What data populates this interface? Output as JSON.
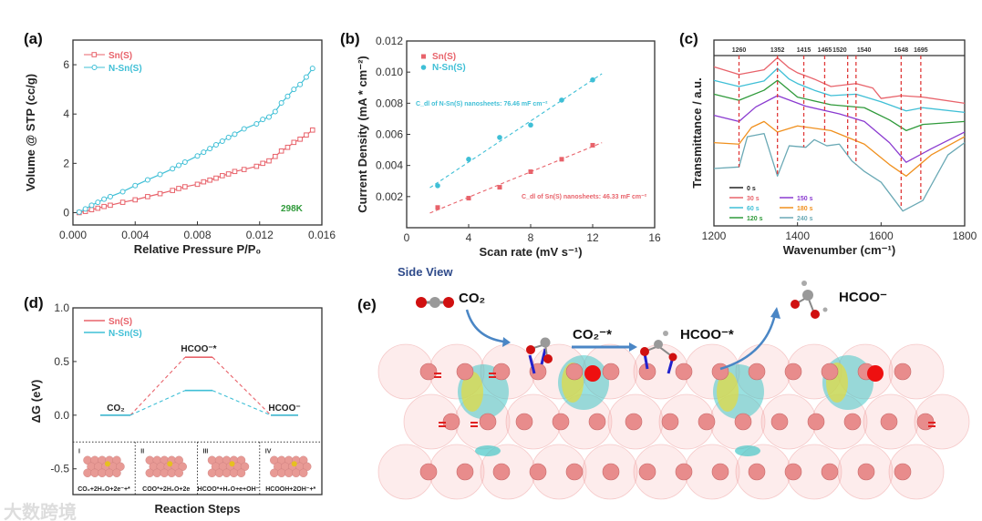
{
  "colors": {
    "sn": "#e8636b",
    "nsn": "#3fbfd6",
    "green": "#2f9a3a",
    "purple": "#8a3ad0",
    "orange": "#f0901e",
    "teal": "#6aa9b5",
    "black": "#222222",
    "side_view": "#2e4a8a"
  },
  "panels": {
    "a": "(a)",
    "b": "(b)",
    "c": "(c)",
    "d": "(d)",
    "e": "(e)"
  },
  "watermark": "大数跨境",
  "chart_data": [
    {
      "id": "a",
      "type": "line",
      "xlabel": "Relative Pressure  P/P₀",
      "ylabel": "Volume @ STP (cc/g)",
      "xlim": [
        0,
        0.016
      ],
      "ylim": [
        -0.5,
        7
      ],
      "xticks": [
        "0.000",
        "0.004",
        "0.008",
        "0.012",
        "0.016"
      ],
      "xtick_values": [
        0,
        0.004,
        0.008,
        0.012,
        0.016
      ],
      "yticks": [
        "0",
        "2",
        "4",
        "6"
      ],
      "ytick_values": [
        0,
        2,
        4,
        6
      ],
      "annotation": "298K",
      "legend_position": "top-left",
      "x": [
        0.0004,
        0.0008,
        0.0012,
        0.0016,
        0.002,
        0.0024,
        0.0032,
        0.004,
        0.0048,
        0.0056,
        0.0064,
        0.0068,
        0.0072,
        0.008,
        0.0084,
        0.0088,
        0.0092,
        0.0096,
        0.01,
        0.0104,
        0.011,
        0.0118,
        0.0122,
        0.0126,
        0.013,
        0.0134,
        0.0138,
        0.0142,
        0.0146,
        0.015,
        0.0154
      ],
      "series": [
        {
          "name": "Sn(S)",
          "marker": "square",
          "values": [
            0,
            0.05,
            0.12,
            0.18,
            0.25,
            0.3,
            0.42,
            0.52,
            0.65,
            0.77,
            0.9,
            0.98,
            1.05,
            1.15,
            1.25,
            1.32,
            1.4,
            1.5,
            1.57,
            1.67,
            1.75,
            1.88,
            2.0,
            2.1,
            2.28,
            2.5,
            2.65,
            2.85,
            2.98,
            3.15,
            3.35
          ]
        },
        {
          "name": "N-Sn(S)",
          "marker": "circle",
          "values": [
            0.02,
            0.15,
            0.3,
            0.42,
            0.55,
            0.65,
            0.85,
            1.1,
            1.33,
            1.55,
            1.78,
            1.92,
            2.05,
            2.3,
            2.45,
            2.6,
            2.75,
            2.9,
            3.05,
            3.18,
            3.4,
            3.6,
            3.78,
            3.88,
            4.1,
            4.45,
            4.72,
            5.0,
            5.2,
            5.5,
            5.85
          ]
        }
      ]
    },
    {
      "id": "b",
      "type": "scatter",
      "xlabel": "Scan rate (mV s⁻¹)",
      "ylabel": "Current Density (mA * cm⁻²)",
      "xlim": [
        0,
        16
      ],
      "ylim": [
        0,
        0.012
      ],
      "xticks": [
        "0",
        "4",
        "8",
        "12",
        "16"
      ],
      "xtick_values": [
        0,
        4,
        8,
        12,
        16
      ],
      "yticks": [
        "0.002",
        "0.004",
        "0.006",
        "0.008",
        "0.010",
        "0.012"
      ],
      "ytick_values": [
        0.002,
        0.004,
        0.006,
        0.008,
        0.01,
        0.012
      ],
      "legend_position": "top-left",
      "x": [
        2,
        4,
        6,
        8,
        10,
        12
      ],
      "series": [
        {
          "name": "Sn(S)",
          "values": [
            0.0013,
            0.0019,
            0.0026,
            0.0036,
            0.0044,
            0.0053
          ],
          "fit_annotation": "C_dl of Sn(S) nanosheets: 46.33 mF cm⁻²"
        },
        {
          "name": "N-Sn(S)",
          "values": [
            0.0027,
            0.0044,
            0.0058,
            0.0066,
            0.0082,
            0.0095
          ],
          "fit_annotation": "C_dl of N-Sn(S) nanosheets: 76.46 mF cm⁻²"
        }
      ]
    },
    {
      "id": "c",
      "type": "line",
      "xlabel": "Wavenumber (cm⁻¹)",
      "ylabel": "Transmittance / a.u.",
      "xlim": [
        1200,
        1800
      ],
      "ylim": [
        0,
        100
      ],
      "xticks": [
        "1200",
        "1400",
        "1600",
        "1800"
      ],
      "xtick_values": [
        1200,
        1400,
        1600,
        1800
      ],
      "reference_lines": [
        1260,
        1352,
        1415,
        1465,
        1520,
        1540,
        1648,
        1695
      ],
      "legend_position": "bottom-left",
      "series": [
        {
          "name": "0 s",
          "color_key": "black",
          "points": [
            [
              1200,
              91.7
            ],
            [
              1800,
              91.7
            ]
          ]
        },
        {
          "name": "30 s",
          "color_key": "sn",
          "points": [
            [
              1200,
              85.6
            ],
            [
              1260,
              81.5
            ],
            [
              1320,
              84
            ],
            [
              1352,
              90.5
            ],
            [
              1380,
              85
            ],
            [
              1400,
              82.4
            ],
            [
              1440,
              79
            ],
            [
              1480,
              75
            ],
            [
              1540,
              76.6
            ],
            [
              1580,
              74.2
            ],
            [
              1600,
              68.6
            ],
            [
              1648,
              70.1
            ],
            [
              1700,
              69.3
            ],
            [
              1800,
              66
            ]
          ]
        },
        {
          "name": "60 s",
          "color_key": "nsn",
          "points": [
            [
              1200,
              78.3
            ],
            [
              1260,
              75
            ],
            [
              1320,
              78
            ],
            [
              1352,
              84.8
            ],
            [
              1380,
              79
            ],
            [
              1400,
              76.6
            ],
            [
              1440,
              73
            ],
            [
              1480,
              70.1
            ],
            [
              1540,
              70.9
            ],
            [
              1600,
              66.8
            ],
            [
              1660,
              61.9
            ],
            [
              1700,
              63.6
            ],
            [
              1800,
              61.1
            ]
          ]
        },
        {
          "name": "120 s",
          "color_key": "green",
          "points": [
            [
              1200,
              70.9
            ],
            [
              1260,
              67.6
            ],
            [
              1320,
              73
            ],
            [
              1352,
              78.3
            ],
            [
              1400,
              69.3
            ],
            [
              1480,
              65.2
            ],
            [
              1560,
              63.6
            ],
            [
              1620,
              57
            ],
            [
              1660,
              51.3
            ],
            [
              1700,
              54.6
            ],
            [
              1800,
              56.2
            ]
          ]
        },
        {
          "name": "150 s",
          "color_key": "purple",
          "points": [
            [
              1200,
              59.5
            ],
            [
              1260,
              56.2
            ],
            [
              1300,
              64
            ],
            [
              1352,
              70.1
            ],
            [
              1420,
              64.4
            ],
            [
              1500,
              60.3
            ],
            [
              1560,
              56.2
            ],
            [
              1620,
              44.8
            ],
            [
              1660,
              34.2
            ],
            [
              1720,
              41.5
            ],
            [
              1800,
              50.5
            ]
          ]
        },
        {
          "name": "180 s",
          "color_key": "orange",
          "points": [
            [
              1200,
              44.8
            ],
            [
              1260,
              44
            ],
            [
              1290,
              53
            ],
            [
              1320,
              56.2
            ],
            [
              1352,
              50.5
            ],
            [
              1400,
              53.8
            ],
            [
              1480,
              51.3
            ],
            [
              1560,
              44
            ],
            [
              1620,
              33
            ],
            [
              1660,
              26.8
            ],
            [
              1720,
              38.2
            ],
            [
              1800,
              48
            ]
          ]
        },
        {
          "name": "240 s",
          "color_key": "teal",
          "points": [
            [
              1200,
              30.9
            ],
            [
              1260,
              31.7
            ],
            [
              1280,
              48
            ],
            [
              1320,
              49.7
            ],
            [
              1352,
              26.8
            ],
            [
              1380,
              43.1
            ],
            [
              1420,
              42.3
            ],
            [
              1440,
              46.4
            ],
            [
              1470,
              43.1
            ],
            [
              1500,
              44
            ],
            [
              1530,
              35
            ],
            [
              1560,
              29.3
            ],
            [
              1600,
              23.5
            ],
            [
              1652,
              8
            ],
            [
              1700,
              13.7
            ],
            [
              1760,
              38.2
            ],
            [
              1800,
              44.8
            ]
          ]
        }
      ]
    },
    {
      "id": "d",
      "type": "line",
      "xlabel": "Reaction Steps",
      "ylabel": "ΔG (eV)",
      "ylim": [
        -0.74,
        1.0
      ],
      "yticks": [
        "-0.5",
        "0.0",
        "0.5",
        "1.0"
      ],
      "ytick_values": [
        -0.5,
        0,
        0.5,
        1.0
      ],
      "categories": [
        "CO₂",
        "HCOO⁻*",
        "HCOO⁻"
      ],
      "legend_position": "top-left",
      "series": [
        {
          "name": "Sn(S)",
          "values": [
            0,
            0.54,
            0
          ]
        },
        {
          "name": "N-Sn(S)",
          "values": [
            0,
            0.23,
            0
          ]
        }
      ],
      "inset_steps": [
        {
          "numeral": "I",
          "equation": "CO₂+2H₂O+2e⁻+*"
        },
        {
          "numeral": "II",
          "equation": "COO*+2H₂O+2e"
        },
        {
          "numeral": "III",
          "equation": "HCOO*+H₂O+e+OH⁻"
        },
        {
          "numeral": "IV",
          "equation": "HCOOH+2OH⁻+*"
        }
      ]
    }
  ],
  "panel_e": {
    "title": "Side View",
    "co2": "CO₂",
    "co2_ads": "CO₂⁻*",
    "hcoo_ads": "HCOO⁻*",
    "hcoo": "HCOO⁻"
  }
}
